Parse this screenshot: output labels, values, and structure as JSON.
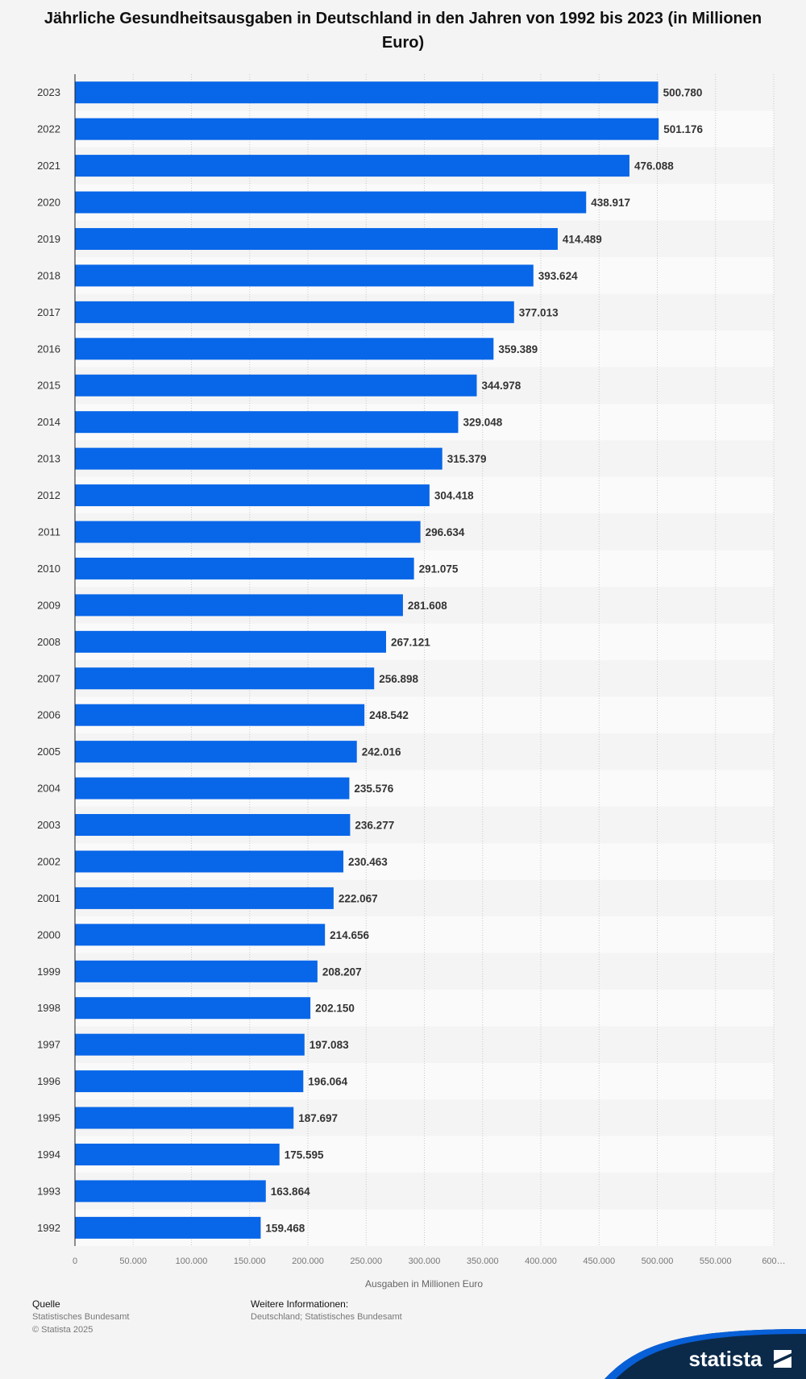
{
  "chart_data": {
    "type": "bar",
    "orientation": "horizontal",
    "title": "Jährliche Gesundheitsausgaben in Deutschland in den Jahren von 1992 bis 2023 (in Millionen Euro)",
    "xlabel": "Ausgaben in Millionen Euro",
    "ylabel": "",
    "xlim": [
      0,
      600000
    ],
    "x_ticks": [
      "0",
      "50.000",
      "100.000",
      "150.000",
      "200.000",
      "250.000",
      "300.000",
      "350.000",
      "400.000",
      "450.000",
      "500.000",
      "550.000",
      "600…"
    ],
    "grid": true,
    "color": "#0866e8",
    "categories": [
      "2023",
      "2022",
      "2021",
      "2020",
      "2019",
      "2018",
      "2017",
      "2016",
      "2015",
      "2014",
      "2013",
      "2012",
      "2011",
      "2010",
      "2009",
      "2008",
      "2007",
      "2006",
      "2005",
      "2004",
      "2003",
      "2002",
      "2001",
      "2000",
      "1999",
      "1998",
      "1997",
      "1996",
      "1995",
      "1994",
      "1993",
      "1992"
    ],
    "values": [
      500780,
      501176,
      476088,
      438917,
      414489,
      393624,
      377013,
      359389,
      344978,
      329048,
      315379,
      304418,
      296634,
      291075,
      281608,
      267121,
      256898,
      248542,
      242016,
      235576,
      236277,
      230463,
      222067,
      214656,
      208207,
      202150,
      197083,
      196064,
      187697,
      175595,
      163864,
      159468
    ],
    "value_labels": [
      "500.780",
      "501.176",
      "476.088",
      "438.917",
      "414.489",
      "393.624",
      "377.013",
      "359.389",
      "344.978",
      "329.048",
      "315.379",
      "304.418",
      "296.634",
      "291.075",
      "281.608",
      "267.121",
      "256.898",
      "248.542",
      "242.016",
      "235.576",
      "236.277",
      "230.463",
      "222.067",
      "214.656",
      "208.207",
      "202.150",
      "197.083",
      "196.064",
      "187.697",
      "175.595",
      "163.864",
      "159.468"
    ]
  },
  "footer": {
    "source_heading": "Quelle",
    "source_lines": [
      "Statistisches Bundesamt",
      "© Statista 2025"
    ],
    "info_heading": "Weitere Informationen:",
    "info_lines": [
      "Deutschland; Statistisches Bundesamt"
    ]
  },
  "brand": {
    "name": "statista",
    "color": "#0b2a4a",
    "accent": "#0866e8"
  }
}
